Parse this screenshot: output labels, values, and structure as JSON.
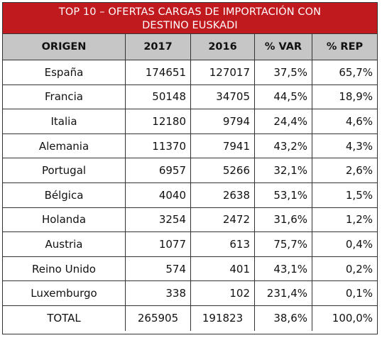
{
  "title": {
    "line1": "TOP 10 –  OFERTAS CARGAS DE IMPORTACIÓN  CON",
    "line2": "DESTINO EUSKADI"
  },
  "headers": [
    "ORIGEN",
    "2017",
    "2016",
    "% VAR",
    "% REP"
  ],
  "rows": [
    [
      "España",
      "174651",
      "127017",
      "37,5%",
      "65,7%"
    ],
    [
      "Francia",
      "50148",
      "34705",
      "44,5%",
      "18,9%"
    ],
    [
      "Italia",
      "12180",
      "9794",
      "24,4%",
      "4,6%"
    ],
    [
      "Alemania",
      "11370",
      "7941",
      "43,2%",
      "4,3%"
    ],
    [
      "Portugal",
      "6957",
      "5266",
      "32,1%",
      "2,6%"
    ],
    [
      "Bélgica",
      "4040",
      "2638",
      "53,1%",
      "1,5%"
    ],
    [
      "Holanda",
      "3254",
      "2472",
      "31,6%",
      "1,2%"
    ],
    [
      "Austria",
      "1077",
      "613",
      "75,7%",
      "0,4%"
    ],
    [
      "Reino Unido",
      "574",
      "401",
      "43,1%",
      "0,2%"
    ],
    [
      "Luxemburgo",
      "338",
      "102",
      "231,4%",
      "0,1%"
    ],
    [
      "TOTAL",
      "265905",
      "191823",
      "38,6%",
      "100,0%"
    ]
  ],
  "colors": {
    "title_bg": "#c0191e",
    "header_bg": "#c6c6c6"
  }
}
